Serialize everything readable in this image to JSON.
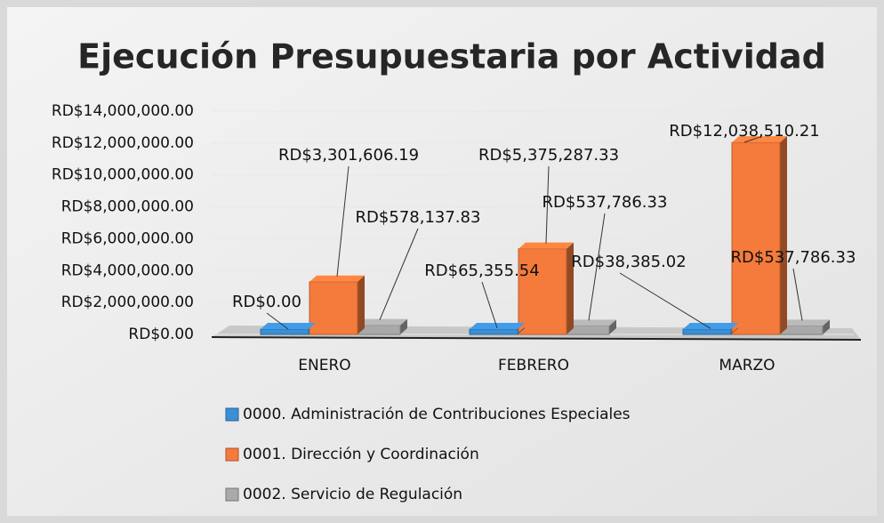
{
  "chart_data": {
    "type": "bar",
    "title": "Ejecución Presupuestaria por Actividad",
    "categories": [
      "ENERO",
      "FEBRERO",
      "MARZO"
    ],
    "series": [
      {
        "name": "0000. Administración de Contribuciones Especiales",
        "color": "#3b8fd4",
        "values": [
          0,
          65355.54,
          38385.02
        ],
        "value_labels": [
          "RD$0.00",
          "RD$65,355.54",
          "RD$38,385.02"
        ]
      },
      {
        "name": "0001. Dirección y Coordinación",
        "color": "#f47b3c",
        "values": [
          3301606.19,
          5375287.33,
          12038510.21
        ],
        "value_labels": [
          "RD$3,301,606.19",
          "RD$5,375,287.33",
          "RD$12,038,510.21"
        ]
      },
      {
        "name": "0002. Servicio de Regulación",
        "color": "#a9a9a9",
        "values": [
          578137.83,
          537786.33,
          537786.33
        ],
        "value_labels": [
          "RD$578,137.83",
          "RD$537,786.33",
          "RD$537,786.33"
        ]
      }
    ],
    "ylim": [
      0,
      14000000
    ],
    "yticks": [
      {
        "value": 0,
        "label": "RD$0.00"
      },
      {
        "value": 2000000,
        "label": "RD$2,000,000.00"
      },
      {
        "value": 4000000,
        "label": "RD$4,000,000.00"
      },
      {
        "value": 6000000,
        "label": "RD$6,000,000.00"
      },
      {
        "value": 8000000,
        "label": "RD$8,000,000.00"
      },
      {
        "value": 10000000,
        "label": "RD$10,000,000.00"
      },
      {
        "value": 12000000,
        "label": "RD$12,000,000.00"
      },
      {
        "value": 14000000,
        "label": "RD$14,000,000.00"
      }
    ],
    "legend": "bottom"
  }
}
